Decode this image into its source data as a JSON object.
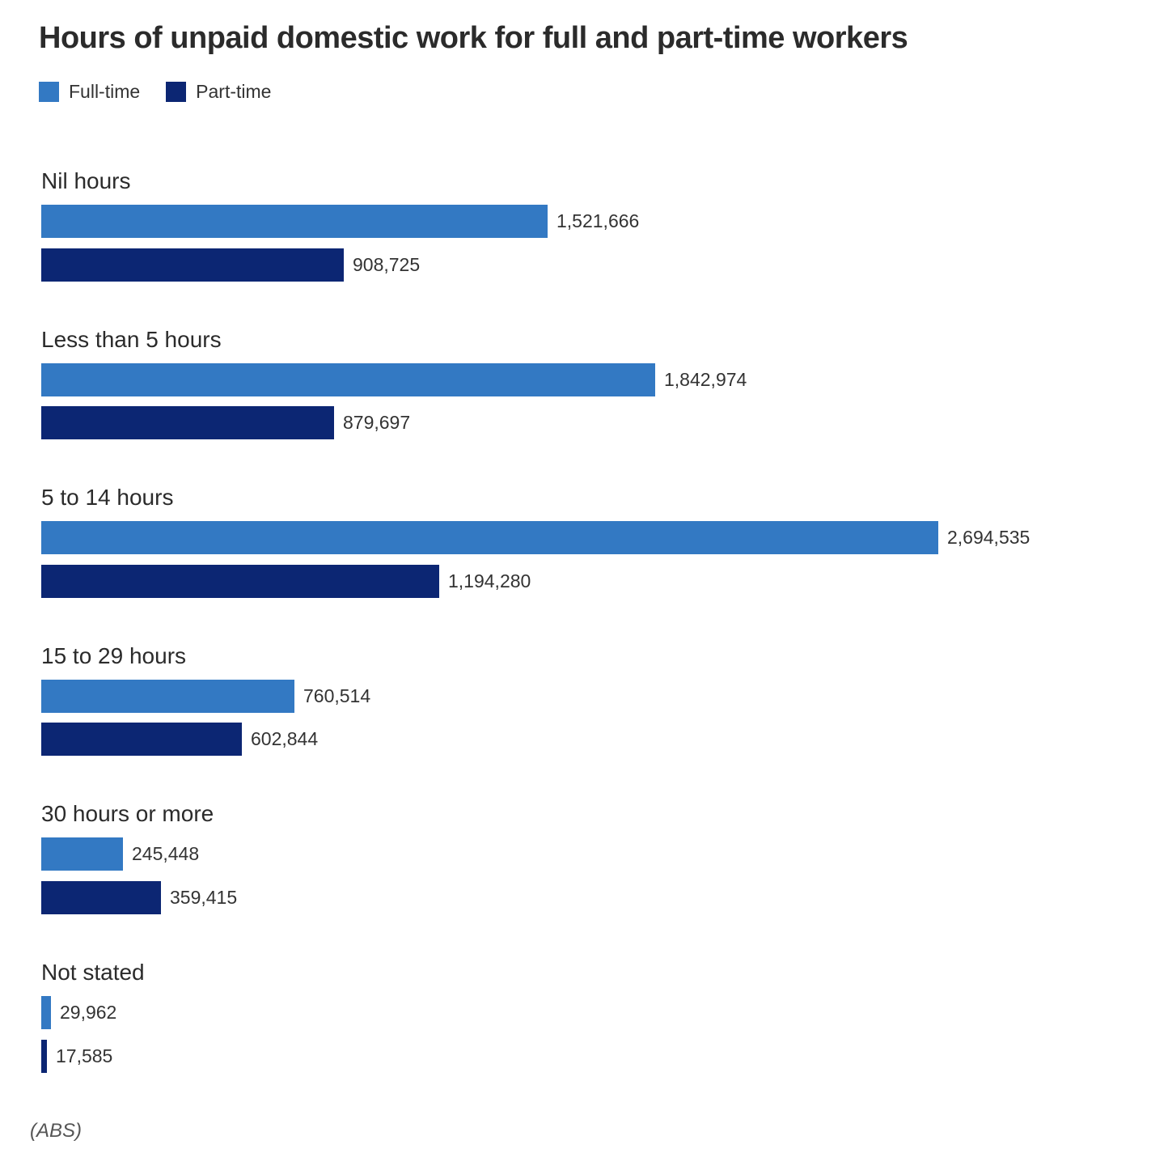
{
  "chart_data": {
    "type": "bar",
    "orientation": "horizontal",
    "title": "Hours of unpaid domestic work for full and part-time workers",
    "categories": [
      "Nil hours",
      "Less than 5 hours",
      "5 to 14 hours",
      "15 to 29 hours",
      "30 hours or more",
      "Not stated"
    ],
    "series": [
      {
        "name": "Full-time",
        "color": "#3379c3",
        "values": [
          1521666,
          1842974,
          2694535,
          760514,
          245448,
          29962
        ],
        "labels": [
          "1,521,666",
          "1,842,974",
          "2,694,535",
          "760,514",
          "245,448",
          "29,962"
        ]
      },
      {
        "name": "Part-time",
        "color": "#0c2673",
        "values": [
          908725,
          879697,
          1194280,
          602844,
          359415,
          17585
        ],
        "labels": [
          "908,725",
          "879,697",
          "1,194,280",
          "602,844",
          "359,415",
          "17,585"
        ]
      }
    ],
    "xlim": [
      0,
      2694535
    ],
    "legend_position": "top-left",
    "grid": false,
    "source": "(ABS)"
  }
}
